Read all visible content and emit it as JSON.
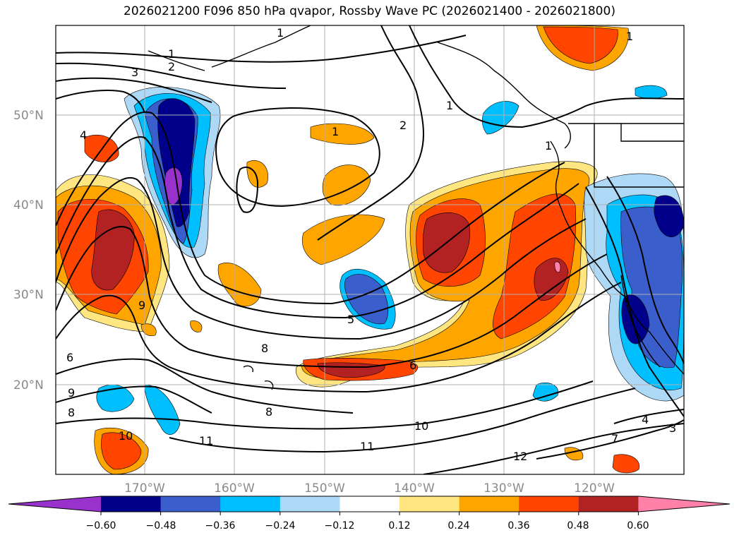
{
  "title": "2026021200 F096 850 hPa qvapor, Rossby Wave PC (2026021400 - 2026021800)",
  "map": {
    "lat_labels": [
      "50°N",
      "40°N",
      "30°N",
      "20°N"
    ],
    "lon_labels": [
      "170°W",
      "160°W",
      "150°W",
      "140°W",
      "130°W",
      "120°W"
    ],
    "grid": true
  },
  "contour_labels": [
    "1",
    "1",
    "1",
    "1",
    "1",
    "1",
    "2",
    "2",
    "3",
    "3",
    "4",
    "4",
    "5",
    "6",
    "6",
    "7",
    "8",
    "8",
    "8",
    "9",
    "9",
    "10",
    "10",
    "11",
    "11",
    "12"
  ],
  "colorbar": {
    "ticks": [
      "−0.60",
      "−0.48",
      "−0.36",
      "−0.24",
      "−0.12",
      "0.12",
      "0.24",
      "0.36",
      "0.48",
      "0.60"
    ],
    "colors": [
      "#9932cc",
      "#00008b",
      "#3a5fcd",
      "#00bfff",
      "#add8f6",
      "#ffffff",
      "#ffe680",
      "#ffa500",
      "#ff4500",
      "#b22222",
      "#ff80a8"
    ],
    "extend": "both"
  }
}
